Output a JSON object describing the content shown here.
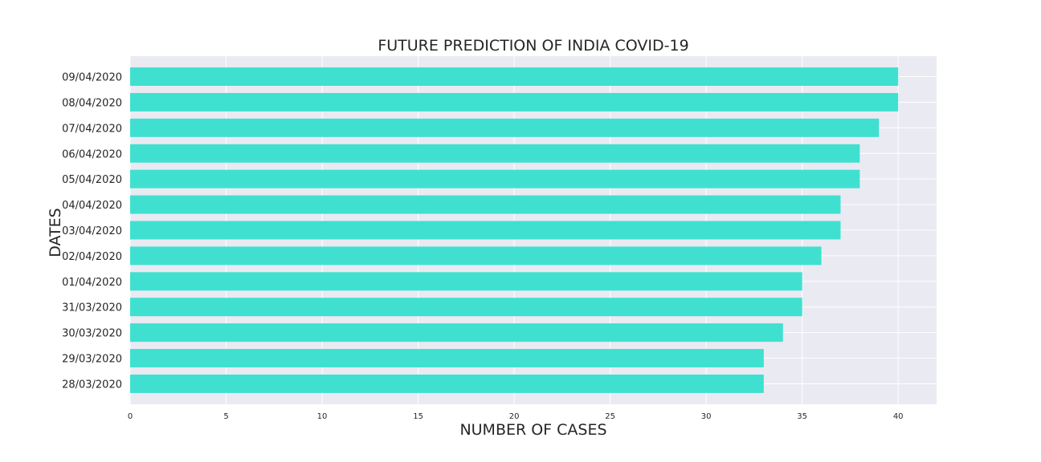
{
  "chart_data": {
    "type": "bar",
    "orientation": "horizontal",
    "title": "FUTURE PREDICTION OF INDIA COVID-19",
    "xlabel": "NUMBER OF CASES",
    "ylabel": "DATES",
    "categories": [
      "28/03/2020",
      "29/03/2020",
      "30/03/2020",
      "31/03/2020",
      "01/04/2020",
      "02/04/2020",
      "03/04/2020",
      "04/04/2020",
      "05/04/2020",
      "06/04/2020",
      "07/04/2020",
      "08/04/2020",
      "09/04/2020"
    ],
    "values": [
      33,
      33,
      34,
      35,
      35,
      36,
      37,
      37,
      38,
      38,
      39,
      40,
      40
    ],
    "xlim": [
      0,
      42
    ],
    "xticks": [
      0,
      5,
      10,
      15,
      20,
      25,
      30,
      35,
      40
    ],
    "grid": true,
    "bar_color": "#40e0d0",
    "background_color": "#eaeaf2"
  }
}
